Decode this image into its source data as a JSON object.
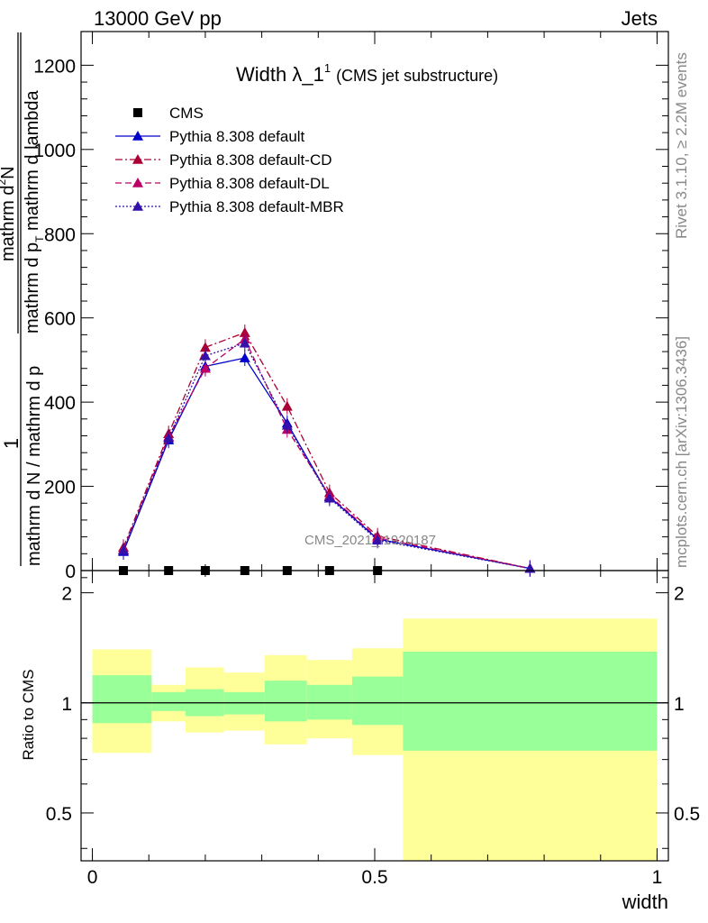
{
  "header": {
    "left": "13000 GeV pp",
    "right": "Jets"
  },
  "side_labels": {
    "rivet": "Rivet 3.1.10, ≥ 2.2M events",
    "mcplots": "mcplots.cern.ch [arXiv:1306.3436]"
  },
  "watermark": "CMS_2021_I1920187",
  "colors": {
    "ratio_band_outer": "#ffff99",
    "ratio_band_inner": "#99ff99"
  },
  "chart_data": [
    {
      "type": "line",
      "title_main": "Width λ_1",
      "title_sup": "1",
      "title_note": "(CMS jet substructure)",
      "ylabel_parts": {
        "one": "1",
        "den": "mathrm d N / mathrm d p",
        "num_top": "mathrm d",
        "num_sup": "2",
        "num_n": "N",
        "num_bottom": "mathrm d p",
        "num_sub": "T",
        "num_tail": " mathrm d lambda"
      },
      "xlim": [
        -0.02,
        1.02
      ],
      "ylim": [
        0,
        1280
      ],
      "yticks": [
        0,
        200,
        400,
        600,
        800,
        1000,
        1200
      ],
      "ytick_labels": [
        "0",
        "200",
        "400",
        "600",
        "800",
        "1000",
        "1200"
      ],
      "legend_position": "top-left",
      "series": [
        {
          "name": "CMS",
          "style": "markers",
          "marker": "square",
          "color": "#000000",
          "x": [
            0.055,
            0.135,
            0.2,
            0.27,
            0.345,
            0.42,
            0.505
          ],
          "y": [
            0,
            0,
            0,
            0,
            0,
            0,
            0
          ]
        },
        {
          "name": "Pythia 8.308 default",
          "style": "solid",
          "marker": "triangle",
          "color": "#0000cc",
          "x": [
            0.055,
            0.135,
            0.2,
            0.27,
            0.345,
            0.42,
            0.505,
            0.775
          ],
          "y": [
            45,
            310,
            485,
            505,
            350,
            175,
            75,
            5
          ]
        },
        {
          "name": "Pythia 8.308 default-CD",
          "style": "dashdot",
          "marker": "triangle",
          "color": "#aa0033",
          "x": [
            0.055,
            0.135,
            0.2,
            0.27,
            0.345,
            0.42,
            0.505,
            0.775
          ],
          "y": [
            55,
            325,
            530,
            565,
            390,
            185,
            82,
            5
          ]
        },
        {
          "name": "Pythia 8.308 default-DL",
          "style": "dashed",
          "marker": "triangle",
          "color": "#bb0066",
          "x": [
            0.055,
            0.135,
            0.2,
            0.27,
            0.345,
            0.42,
            0.505,
            0.775
          ],
          "y": [
            50,
            318,
            480,
            550,
            335,
            178,
            78,
            5
          ]
        },
        {
          "name": "Pythia 8.308 default-MBR",
          "style": "dotted",
          "marker": "triangle",
          "color": "#3311aa",
          "x": [
            0.055,
            0.135,
            0.2,
            0.27,
            0.345,
            0.42,
            0.505,
            0.775
          ],
          "y": [
            48,
            315,
            510,
            540,
            345,
            172,
            72,
            5
          ]
        }
      ]
    },
    {
      "type": "area",
      "ylabel": "Ratio to CMS",
      "xlabel": "width",
      "xlim": [
        -0.02,
        1.02
      ],
      "ylim": [
        0.37,
        2.3
      ],
      "xticks": [
        0,
        0.5,
        1
      ],
      "xtick_labels": [
        "0",
        "0.5",
        "1"
      ],
      "yticks": [
        0.5,
        1,
        2
      ],
      "ytick_labels": [
        "0.5",
        "1",
        "2"
      ],
      "reference_line": 1,
      "bins": [
        {
          "lo": 0.0,
          "hi": 0.105,
          "outer": [
            0.73,
            1.4
          ],
          "inner": [
            0.88,
            1.19
          ]
        },
        {
          "lo": 0.105,
          "hi": 0.165,
          "outer": [
            0.89,
            1.12
          ],
          "inner": [
            0.95,
            1.07
          ]
        },
        {
          "lo": 0.165,
          "hi": 0.233,
          "outer": [
            0.83,
            1.25
          ],
          "inner": [
            0.92,
            1.09
          ]
        },
        {
          "lo": 0.233,
          "hi": 0.305,
          "outer": [
            0.84,
            1.21
          ],
          "inner": [
            0.93,
            1.07
          ]
        },
        {
          "lo": 0.305,
          "hi": 0.38,
          "outer": [
            0.77,
            1.35
          ],
          "inner": [
            0.89,
            1.15
          ]
        },
        {
          "lo": 0.38,
          "hi": 0.46,
          "outer": [
            0.8,
            1.31
          ],
          "inner": [
            0.9,
            1.12
          ]
        },
        {
          "lo": 0.46,
          "hi": 0.55,
          "outer": [
            0.72,
            1.41
          ],
          "inner": [
            0.87,
            1.18
          ]
        },
        {
          "lo": 0.55,
          "hi": 1.0,
          "outer": [
            0.37,
            1.7
          ],
          "inner": [
            0.74,
            1.38
          ]
        }
      ]
    }
  ]
}
